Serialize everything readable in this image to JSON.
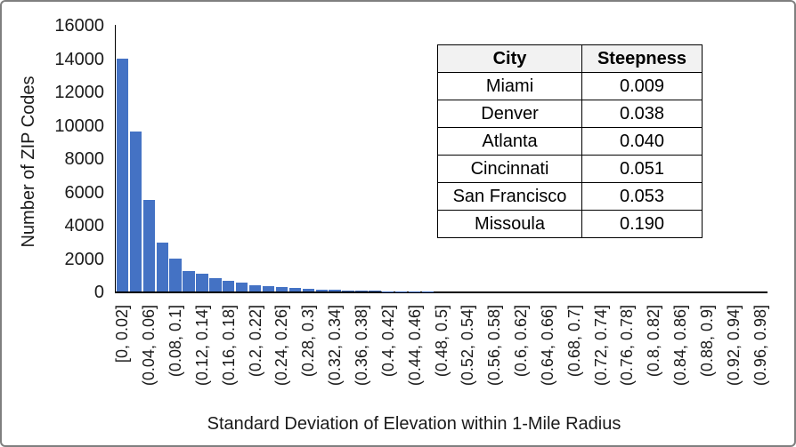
{
  "chart_data": {
    "type": "bar",
    "title": "",
    "xlabel": "Standard Deviation of Elevation within 1-Mile Radius",
    "ylabel": "Number of ZIP Codes",
    "ylim": [
      0,
      16000
    ],
    "y_ticks": [
      0,
      2000,
      4000,
      6000,
      8000,
      10000,
      12000,
      14000,
      16000
    ],
    "bin_size": 0.02,
    "n_bins": 49,
    "grid": false,
    "legend": "none",
    "x_tick_labels": [
      "[0, 0.02]",
      "(0.04, 0.06]",
      "(0.08, 0.1]",
      "(0.12, 0.14]",
      "(0.16, 0.18]",
      "(0.2, 0.22]",
      "(0.24, 0.26]",
      "(0.28, 0.3]",
      "(0.32, 0.34]",
      "(0.36, 0.38]",
      "(0.4, 0.42]",
      "(0.44, 0.46]",
      "(0.48, 0.5]",
      "(0.52, 0.54]",
      "(0.56, 0.58]",
      "(0.6, 0.62]",
      "(0.64, 0.66]",
      "(0.68, 0.7]",
      "(0.72, 0.74]",
      "(0.76, 0.78]",
      "(0.8, 0.82]",
      "(0.84, 0.86]",
      "(0.88, 0.9]",
      "(0.92, 0.94]",
      "(0.96, 0.98]"
    ],
    "values": [
      14000,
      9600,
      5500,
      2950,
      1950,
      1250,
      1050,
      780,
      640,
      550,
      380,
      320,
      270,
      200,
      160,
      130,
      110,
      80,
      60,
      35,
      20,
      12,
      8,
      6,
      4,
      3,
      2,
      2,
      1,
      1,
      0,
      0,
      0,
      0,
      0,
      0,
      0,
      0,
      0,
      0,
      0,
      0,
      0,
      0,
      0,
      0,
      0,
      0,
      0
    ]
  },
  "table": {
    "headers": [
      "City",
      "Steepness"
    ],
    "rows": [
      [
        "Miami",
        "0.009"
      ],
      [
        "Denver",
        "0.038"
      ],
      [
        "Atlanta",
        "0.040"
      ],
      [
        "Cincinnati",
        "0.051"
      ],
      [
        "San Francisco",
        "0.053"
      ],
      [
        "Missoula",
        "0.190"
      ]
    ]
  },
  "colors": {
    "bar": "#4472C4",
    "axis": "#000000",
    "frame_border": "#7f7f7f",
    "table_header_bg": "#f2f2f2",
    "text": "#1a1a1a"
  }
}
